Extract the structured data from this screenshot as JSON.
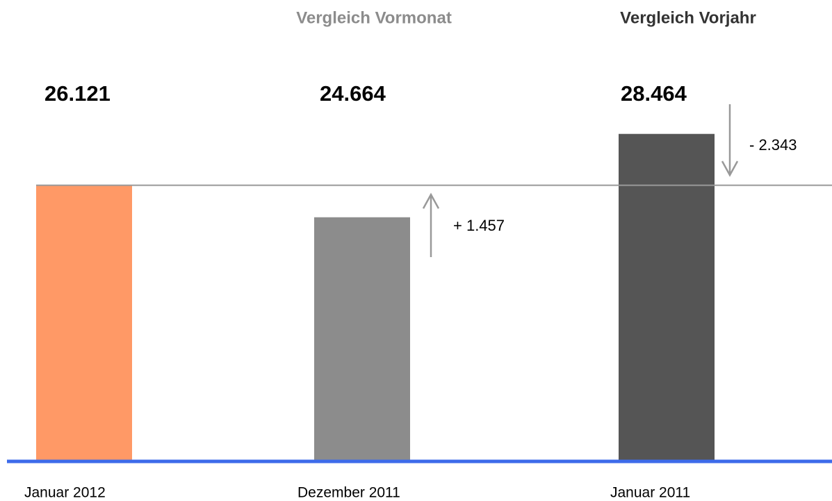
{
  "chart_data": {
    "type": "bar",
    "headings": [
      "Vergleich Vormonat",
      "Vergleich Vorjahr"
    ],
    "categories": [
      "Januar 2012",
      "Dezember 2011",
      "Januar 2011"
    ],
    "values": [
      26121,
      24664,
      28464
    ],
    "value_labels": [
      "26.121",
      "24.664",
      "28.464"
    ],
    "colors": [
      "#ff9966",
      "#8c8c8c",
      "#555555"
    ],
    "annotations": [
      "+ 1.457",
      "- 2.343"
    ],
    "ylim": [
      13600,
      31400
    ]
  }
}
